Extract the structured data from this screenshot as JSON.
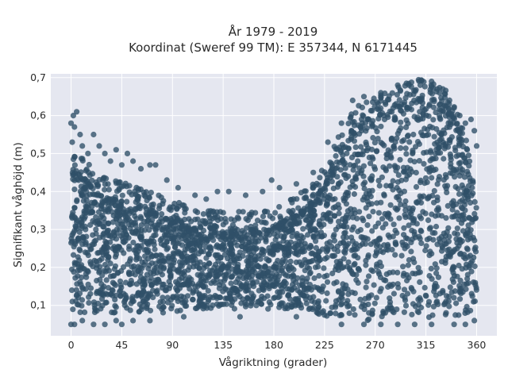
{
  "chart_data": {
    "type": "scatter",
    "title_lines": [
      "År 1979 - 2019",
      "Koordinat (Sweref 99 TM): E 357344, N 6171445"
    ],
    "xlabel": "Vågriktning (grader)",
    "ylabel": "Signifikant våghöjd (m)",
    "xlim": [
      -18,
      378
    ],
    "ylim": [
      0.02,
      0.71
    ],
    "xticks": [
      0,
      45,
      90,
      135,
      180,
      225,
      270,
      315,
      360
    ],
    "xtick_labels": [
      "0",
      "45",
      "90",
      "135",
      "180",
      "225",
      "270",
      "315",
      "360"
    ],
    "yticks": [
      0.1,
      0.2,
      0.3,
      0.4,
      0.5,
      0.6,
      0.7
    ],
    "ytick_labels": [
      "0,1",
      "0,2",
      "0,3",
      "0,4",
      "0,5",
      "0,6",
      "0,7"
    ],
    "grid": true,
    "marker_color": "#2f5068",
    "background_color": "#e5e7f0",
    "series": [
      {
        "envelope": {
          "x": [
            0,
            10,
            20,
            30,
            45,
            60,
            75,
            90,
            105,
            120,
            135,
            150,
            165,
            180,
            195,
            210,
            225,
            240,
            255,
            270,
            285,
            300,
            315,
            330,
            345,
            360
          ],
          "upper": [
            0.45,
            0.44,
            0.41,
            0.39,
            0.38,
            0.36,
            0.35,
            0.33,
            0.31,
            0.3,
            0.3,
            0.3,
            0.3,
            0.31,
            0.33,
            0.36,
            0.42,
            0.52,
            0.58,
            0.6,
            0.62,
            0.64,
            0.65,
            0.63,
            0.56,
            0.37
          ],
          "lower": [
            0.08,
            0.08,
            0.08,
            0.08,
            0.08,
            0.08,
            0.08,
            0.08,
            0.09,
            0.09,
            0.09,
            0.09,
            0.09,
            0.09,
            0.09,
            0.09,
            0.07,
            0.07,
            0.06,
            0.06,
            0.06,
            0.06,
            0.06,
            0.07,
            0.07,
            0.09
          ]
        },
        "outliers": [
          [
            0,
            0.58
          ],
          [
            2,
            0.6
          ],
          [
            5,
            0.61
          ],
          [
            3,
            0.57
          ],
          [
            8,
            0.55
          ],
          [
            1,
            0.53
          ],
          [
            10,
            0.52
          ],
          [
            15,
            0.5
          ],
          [
            20,
            0.55
          ],
          [
            25,
            0.52
          ],
          [
            30,
            0.5
          ],
          [
            35,
            0.48
          ],
          [
            40,
            0.51
          ],
          [
            45,
            0.47
          ],
          [
            50,
            0.5
          ],
          [
            55,
            0.48
          ],
          [
            62,
            0.46
          ],
          [
            70,
            0.47
          ],
          [
            75,
            0.47
          ],
          [
            85,
            0.43
          ],
          [
            95,
            0.41
          ],
          [
            110,
            0.39
          ],
          [
            120,
            0.38
          ],
          [
            130,
            0.4
          ],
          [
            140,
            0.4
          ],
          [
            155,
            0.39
          ],
          [
            170,
            0.4
          ],
          [
            178,
            0.43
          ],
          [
            185,
            0.41
          ],
          [
            200,
            0.42
          ],
          [
            215,
            0.45
          ],
          [
            228,
            0.53
          ],
          [
            240,
            0.58
          ],
          [
            250,
            0.64
          ],
          [
            260,
            0.65
          ],
          [
            275,
            0.66
          ],
          [
            290,
            0.68
          ],
          [
            300,
            0.68
          ],
          [
            310,
            0.68
          ],
          [
            320,
            0.69
          ],
          [
            325,
            0.67
          ],
          [
            330,
            0.67
          ],
          [
            340,
            0.62
          ],
          [
            345,
            0.6
          ],
          [
            350,
            0.58
          ],
          [
            355,
            0.59
          ],
          [
            358,
            0.56
          ],
          [
            360,
            0.52
          ],
          [
            0,
            0.05
          ],
          [
            3,
            0.05
          ],
          [
            10,
            0.06
          ],
          [
            20,
            0.05
          ],
          [
            30,
            0.05
          ],
          [
            40,
            0.06
          ],
          [
            45,
            0.05
          ],
          [
            55,
            0.06
          ],
          [
            70,
            0.06
          ],
          [
            100,
            0.07
          ],
          [
            150,
            0.07
          ],
          [
            200,
            0.07
          ],
          [
            240,
            0.05
          ],
          [
            260,
            0.05
          ],
          [
            275,
            0.05
          ],
          [
            290,
            0.05
          ],
          [
            305,
            0.05
          ],
          [
            320,
            0.05
          ],
          [
            340,
            0.05
          ],
          [
            350,
            0.05
          ],
          [
            358,
            0.06
          ]
        ]
      }
    ]
  }
}
